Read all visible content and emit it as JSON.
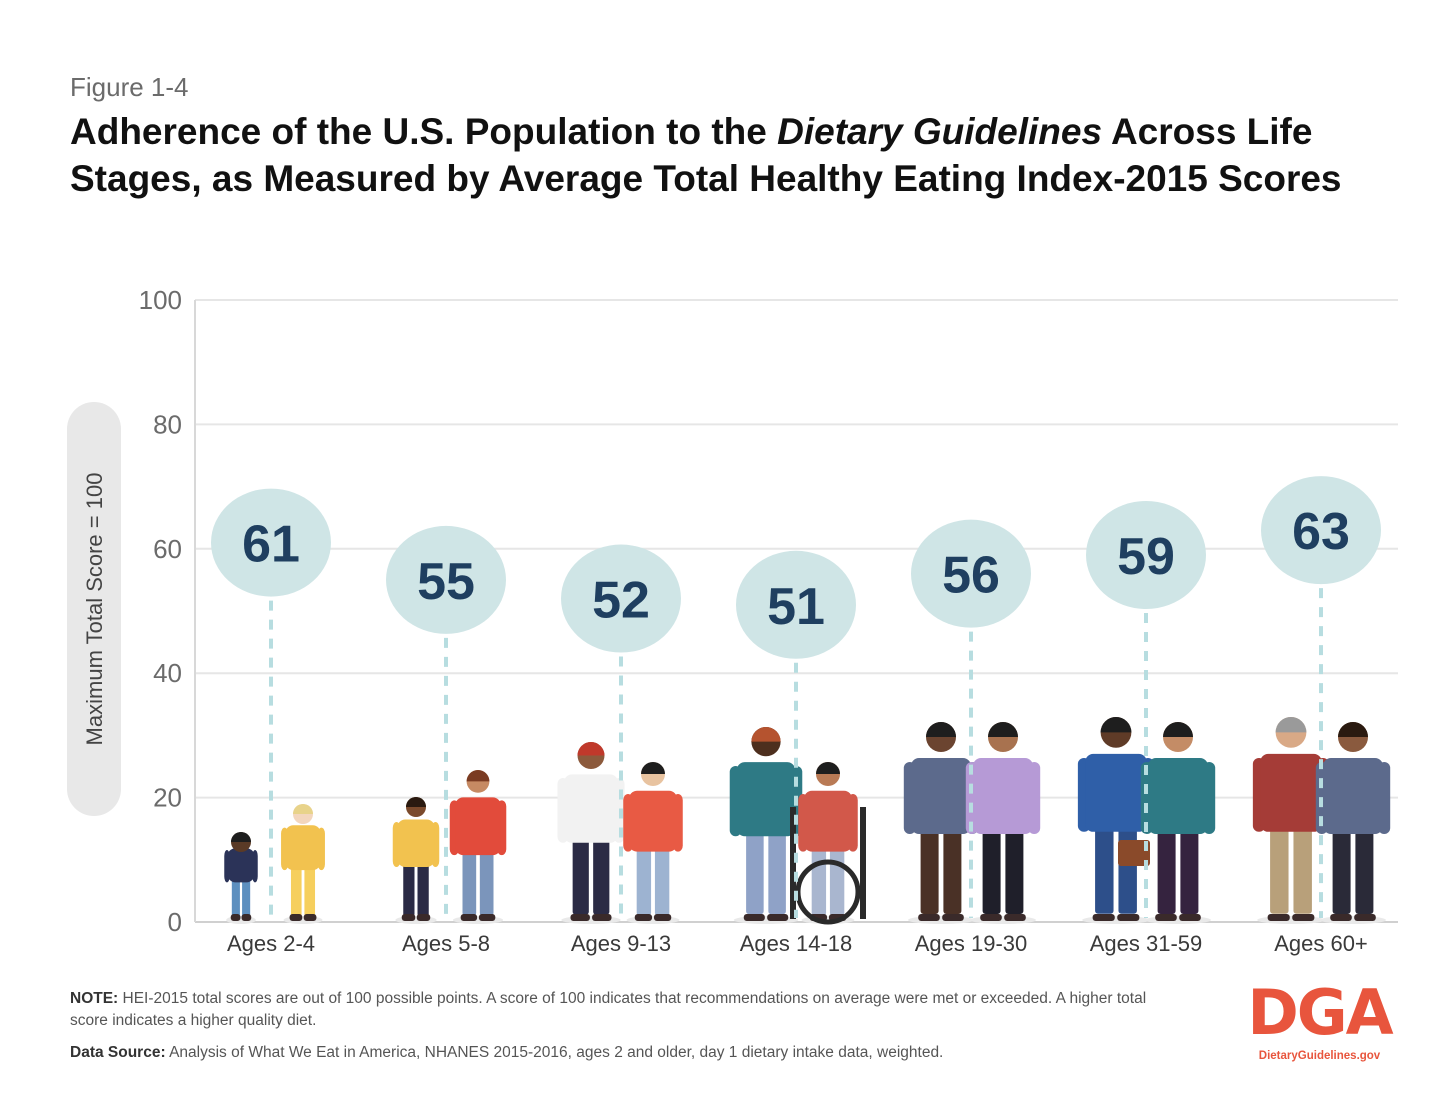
{
  "figure_label": "Figure 1-4",
  "title": {
    "part1": "Adherence of the U.S. Population to the ",
    "italic": "Dietary Guidelines",
    "part2": " Across Life Stages, as Measured by Average Total Healthy Eating Index-2015 Scores"
  },
  "chart_data": {
    "type": "scatter",
    "title": "Adherence of the U.S. Population to the Dietary Guidelines Across Life Stages, as Measured by Average Total Healthy Eating Index-2015 Scores",
    "ylabel": "Maximum Total Score = 100",
    "xlabel": "",
    "ylim": [
      0,
      100
    ],
    "yticks": [
      0,
      20,
      40,
      60,
      80,
      100
    ],
    "grid": true,
    "categories": [
      "Ages 2-4",
      "Ages 5-8",
      "Ages 9-13",
      "Ages 14-18",
      "Ages 19-30",
      "Ages 31-59",
      "Ages 60+"
    ],
    "values": [
      61,
      55,
      52,
      51,
      56,
      59,
      63
    ]
  },
  "colors": {
    "bubble": "#cfe5e6",
    "bubble_text": "#1f3f60",
    "dash": "#b7dde0",
    "grid": "#e6e6e6",
    "axis_pill": "#e8e8e8"
  },
  "note": {
    "label": "NOTE:",
    "text": " HEI-2015 total scores are out of 100 possible points. A score of 100 indicates that recommendations on average were met or exceeded. A higher total score indicates a higher quality diet."
  },
  "source": {
    "label": "Data Source:",
    "text": " Analysis of What We Eat in America, NHANES 2015-2016, ages 2 and older, day 1 dietary intake data, weighted."
  },
  "logo": {
    "mark": "DGA",
    "url": "DietaryGuidelines.gov"
  },
  "people_icons": [
    "toddler-boy-icon",
    "toddler-girl-icon",
    "child-boy-icon",
    "child-girl-icon",
    "teen-boy-icon",
    "teen-girl-icon",
    "teen-boy-icon",
    "wheelchair-girl-icon",
    "man-icon",
    "woman-icon",
    "man-briefcase-icon",
    "woman-icon",
    "older-man-icon",
    "older-woman-icon"
  ]
}
